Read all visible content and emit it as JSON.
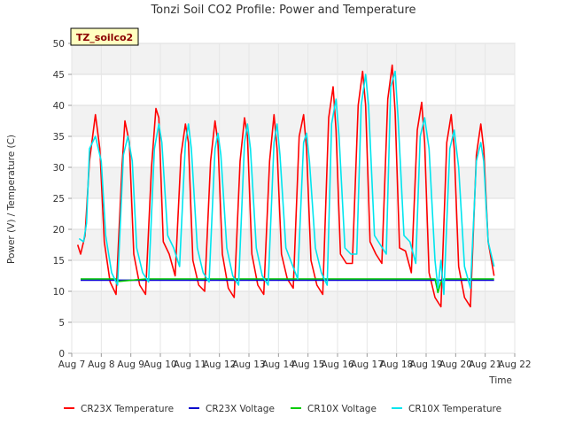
{
  "chart_data": {
    "type": "line",
    "title": "Tonzi Soil CO2 Profile: Power and Temperature",
    "xlabel": "Time",
    "ylabel": "Power (V) / Temperature (C)",
    "badge": "TZ_soilco2",
    "ylim": [
      0,
      50
    ],
    "xlim": [
      7,
      22
    ],
    "yticks": [
      0,
      5,
      10,
      15,
      20,
      25,
      30,
      35,
      40,
      45,
      50
    ],
    "xticks": [
      {
        "v": 7,
        "label": "Aug 7"
      },
      {
        "v": 8,
        "label": "Aug 8"
      },
      {
        "v": 9,
        "label": "Aug 9"
      },
      {
        "v": 10,
        "label": "Aug 10"
      },
      {
        "v": 11,
        "label": "Aug 11"
      },
      {
        "v": 12,
        "label": "Aug 12"
      },
      {
        "v": 13,
        "label": "Aug 13"
      },
      {
        "v": 14,
        "label": "Aug 14"
      },
      {
        "v": 15,
        "label": "Aug 15"
      },
      {
        "v": 16,
        "label": "Aug 16"
      },
      {
        "v": 17,
        "label": "Aug 17"
      },
      {
        "v": 18,
        "label": "Aug 18"
      },
      {
        "v": 19,
        "label": "Aug 19"
      },
      {
        "v": 20,
        "label": "Aug 20"
      },
      {
        "v": 21,
        "label": "Aug 21"
      },
      {
        "v": 22,
        "label": "Aug 22"
      }
    ],
    "grid": true,
    "legend_position": "bottom",
    "series": [
      {
        "name": "CR23X Temperature",
        "color": "#ff0000",
        "x": [
          7.2,
          7.3,
          7.45,
          7.6,
          7.8,
          7.95,
          8.1,
          8.3,
          8.5,
          8.7,
          8.8,
          8.95,
          9.1,
          9.3,
          9.5,
          9.7,
          9.85,
          9.95,
          10.1,
          10.3,
          10.5,
          10.7,
          10.85,
          10.95,
          11.1,
          11.3,
          11.5,
          11.7,
          11.85,
          11.95,
          12.1,
          12.3,
          12.5,
          12.7,
          12.85,
          12.95,
          13.1,
          13.3,
          13.5,
          13.7,
          13.85,
          13.95,
          14.1,
          14.3,
          14.5,
          14.7,
          14.85,
          14.95,
          15.1,
          15.3,
          15.5,
          15.7,
          15.85,
          15.95,
          16.1,
          16.3,
          16.5,
          16.7,
          16.85,
          16.95,
          17.1,
          17.3,
          17.5,
          17.7,
          17.85,
          17.95,
          18.1,
          18.3,
          18.5,
          18.7,
          18.85,
          18.95,
          19.1,
          19.3,
          19.5,
          19.7,
          19.85,
          19.95,
          20.1,
          20.3,
          20.5,
          20.7,
          20.85,
          20.95,
          21.1,
          21.3
        ],
        "y": [
          17.5,
          16,
          19,
          31,
          38.5,
          33,
          18,
          11.5,
          9.5,
          30,
          37.5,
          34,
          16,
          11,
          9.5,
          30,
          39.5,
          38,
          18,
          16,
          12.5,
          32,
          37,
          34,
          15,
          11,
          10,
          31,
          37.5,
          34,
          16,
          10.5,
          9,
          31,
          38,
          35,
          16,
          11,
          9.5,
          31,
          38.5,
          33,
          16,
          12,
          10.5,
          35,
          38.5,
          33,
          15,
          11,
          9.5,
          38,
          43,
          36,
          16,
          14.5,
          14.5,
          40,
          45.5,
          40,
          18,
          16,
          14.5,
          41,
          46.5,
          39,
          17,
          16.5,
          13,
          36,
          40.5,
          34,
          13,
          9,
          7.5,
          34,
          38.5,
          33,
          14,
          9,
          7.5,
          32,
          37,
          33,
          18,
          12.5
        ]
      },
      {
        "name": "CR23X Voltage",
        "color": "#0000cc",
        "x": [
          7.3,
          21.3
        ],
        "y": [
          11.8,
          11.8
        ]
      },
      {
        "name": "CR10X Voltage",
        "color": "#00cc00",
        "x": [
          7.3,
          8.5,
          8.6,
          9.5,
          10.5,
          12.0,
          13.5,
          15.0,
          16.5,
          18.0,
          19.3,
          19.4,
          19.5,
          19.6,
          20.5,
          21.3
        ],
        "y": [
          12.0,
          12.0,
          11.6,
          12.0,
          12.0,
          12.0,
          12.0,
          12.0,
          12.0,
          12.0,
          12.0,
          9.8,
          11.5,
          12.0,
          12.0,
          12.0
        ]
      },
      {
        "name": "CR10X Temperature",
        "color": "#00e5ee",
        "x": [
          7.25,
          7.4,
          7.5,
          7.6,
          7.8,
          8.0,
          8.15,
          8.35,
          8.55,
          8.75,
          8.9,
          9.05,
          9.2,
          9.4,
          9.6,
          9.8,
          9.95,
          10.05,
          10.25,
          10.45,
          10.65,
          10.85,
          10.95,
          11.05,
          11.25,
          11.45,
          11.65,
          11.85,
          11.95,
          12.05,
          12.25,
          12.45,
          12.65,
          12.85,
          12.95,
          13.05,
          13.25,
          13.45,
          13.65,
          13.85,
          13.95,
          14.05,
          14.25,
          14.45,
          14.65,
          14.85,
          14.95,
          15.05,
          15.25,
          15.45,
          15.65,
          15.8,
          15.95,
          16.05,
          16.25,
          16.45,
          16.65,
          16.8,
          16.95,
          17.05,
          17.25,
          17.45,
          17.65,
          17.8,
          17.95,
          18.05,
          18.25,
          18.45,
          18.65,
          18.8,
          18.95,
          19.1,
          19.3,
          19.4,
          19.5,
          19.6,
          19.8,
          19.95,
          20.1,
          20.3,
          20.5,
          20.7,
          20.85,
          20.95,
          21.1,
          21.3
        ],
        "y": [
          18.5,
          18,
          21,
          33,
          35,
          31,
          19,
          13,
          11,
          32,
          35,
          31,
          17,
          13,
          11.5,
          33,
          37,
          34,
          19,
          17,
          14,
          34,
          37,
          33,
          17,
          13,
          11.5,
          33,
          35.5,
          32,
          17,
          12.5,
          11,
          34,
          37,
          33,
          17,
          12.5,
          11,
          34,
          37,
          32,
          17,
          14.5,
          12,
          34,
          35.5,
          31,
          17,
          13,
          11,
          37,
          41,
          35,
          17,
          16,
          16,
          40,
          45,
          40,
          19,
          17.5,
          16,
          43,
          45.5,
          38,
          19,
          18,
          14.5,
          35,
          38,
          33,
          15,
          10.5,
          15,
          9.5,
          33,
          36,
          30,
          14,
          10.5,
          31,
          34,
          31,
          18,
          14
        ]
      }
    ]
  }
}
